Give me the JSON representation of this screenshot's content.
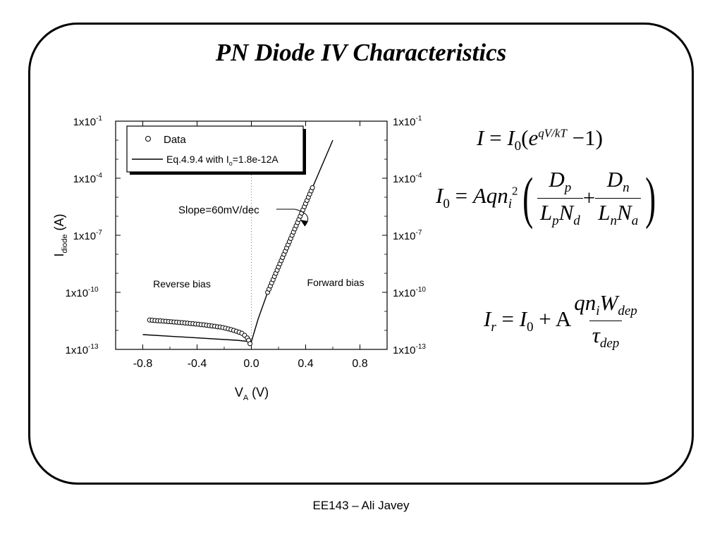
{
  "slide": {
    "title": "PN Diode IV Characteristics",
    "footer": "EE143 – Ali Javey"
  },
  "chart_data": {
    "type": "scatter",
    "xlabel": "V",
    "xlabel_sub": "A",
    "xlabel_unit": " (V)",
    "ylabel": "I",
    "ylabel_sub": "diode",
    "ylabel_unit": " (A)",
    "xlim": [
      -1.0,
      1.0
    ],
    "ylim": [
      1e-13,
      0.1
    ],
    "yscale": "log",
    "x_ticks": [
      "-0.8",
      "-0.4",
      "0.0",
      "0.4",
      "0.8"
    ],
    "x_tick_values": [
      -0.8,
      -0.4,
      0.0,
      0.4,
      0.8
    ],
    "y_tick_values": [
      0.1,
      0.0001,
      1e-07,
      1e-10,
      1e-13
    ],
    "y_tick_base": [
      "1x10",
      "1x10",
      "1x10",
      "1x10",
      "1x10"
    ],
    "y_tick_exp": [
      "-1",
      "-4",
      "-7",
      "-10",
      "-13"
    ],
    "y_ticks_right": true,
    "legend": {
      "placement": "top-left",
      "data_label": "Data",
      "fit_label_prefix": "Eq.4.9.4 with I",
      "fit_label_sub": "o",
      "fit_label_suffix": "=1.8e-12A"
    },
    "annotations": {
      "slope": "Slope=60mV/dec",
      "reverse": "Reverse bias",
      "forward": "Forward bias"
    },
    "series": [
      {
        "name": "Data",
        "marker": "open-circle",
        "reverse_points": [
          [
            -0.75,
            3.5e-12
          ],
          [
            -0.73,
            3.4e-12
          ],
          [
            -0.71,
            3.3e-12
          ],
          [
            -0.69,
            3.2e-12
          ],
          [
            -0.67,
            3.15e-12
          ],
          [
            -0.65,
            3.05e-12
          ],
          [
            -0.63,
            3e-12
          ],
          [
            -0.61,
            2.9e-12
          ],
          [
            -0.59,
            2.85e-12
          ],
          [
            -0.57,
            2.75e-12
          ],
          [
            -0.55,
            2.7e-12
          ],
          [
            -0.53,
            2.6e-12
          ],
          [
            -0.51,
            2.55e-12
          ],
          [
            -0.49,
            2.45e-12
          ],
          [
            -0.47,
            2.4e-12
          ],
          [
            -0.45,
            2.3e-12
          ],
          [
            -0.43,
            2.25e-12
          ],
          [
            -0.41,
            2.15e-12
          ],
          [
            -0.39,
            2.1e-12
          ],
          [
            -0.37,
            2e-12
          ],
          [
            -0.35,
            1.95e-12
          ],
          [
            -0.33,
            1.85e-12
          ],
          [
            -0.31,
            1.8e-12
          ],
          [
            -0.29,
            1.7e-12
          ],
          [
            -0.27,
            1.65e-12
          ],
          [
            -0.25,
            1.55e-12
          ],
          [
            -0.23,
            1.5e-12
          ],
          [
            -0.21,
            1.4e-12
          ],
          [
            -0.19,
            1.3e-12
          ],
          [
            -0.17,
            1.2e-12
          ],
          [
            -0.15,
            1.1e-12
          ],
          [
            -0.13,
            1e-12
          ],
          [
            -0.11,
            9e-13
          ],
          [
            -0.09,
            8e-13
          ],
          [
            -0.07,
            7e-13
          ],
          [
            -0.05,
            5.5e-13
          ],
          [
            -0.03,
            4e-13
          ],
          [
            -0.02,
            3e-13
          ],
          [
            -0.01,
            2e-13
          ]
        ],
        "forward_range": [
          0.12,
          0.45
        ],
        "forward_step": 0.01,
        "forward_log_at_012": -10.0,
        "slope_decades_per_volt": 16.67
      },
      {
        "name": "Eq.4.9.4 with Io=1.8e-12A",
        "line": [
          [
            -0.8,
            6e-13
          ],
          [
            -0.1,
            3e-13
          ],
          [
            0.0,
            2.5e-13
          ],
          [
            0.05,
            4e-12
          ],
          [
            0.12,
            1e-10
          ],
          [
            0.6,
            0.01
          ]
        ]
      }
    ]
  },
  "equations": {
    "eq1": {
      "lhs": "I",
      "eq": " = ",
      "I0": "I",
      "I0sub": "0",
      "open": "(",
      "e": "e",
      "exp": "qV/kT",
      "minus": " −1)"
    },
    "eq2": {
      "lhs": "I",
      "lhs_sub": "0",
      "eq": " = ",
      "Aq": "Aqn",
      "ni_sub": "i",
      "ni_sup": "2",
      "num1": "D",
      "num1_sub": "p",
      "den1a": "L",
      "den1a_sub": "p",
      "den1b": "N",
      "den1b_sub": "d",
      "plus": "+",
      "num2": "D",
      "num2_sub": "n",
      "den2a": "L",
      "den2a_sub": "n",
      "den2b": "N",
      "den2b_sub": "a"
    },
    "eq3": {
      "lhs": "I",
      "lhs_sub": "r",
      "eq": " = ",
      "I0": "I",
      "I0sub": "0",
      "plusA": " + A",
      "num": "qn",
      "num_sub": "i",
      "numW": "W",
      "numW_sub": "dep",
      "den": "τ",
      "den_sub": "dep"
    }
  }
}
